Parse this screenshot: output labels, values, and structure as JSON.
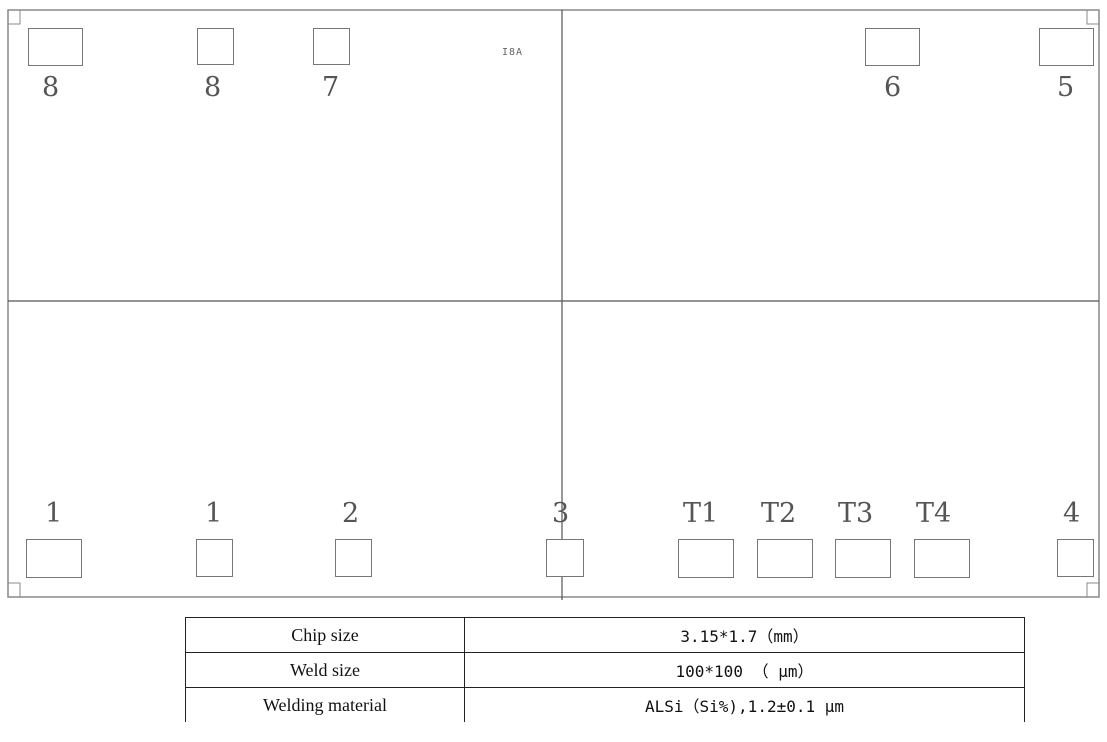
{
  "die": {
    "mark": "I8A",
    "top_pads": [
      {
        "id": "pad-8a",
        "label": "8"
      },
      {
        "id": "pad-8b",
        "label": "8"
      },
      {
        "id": "pad-7",
        "label": "7"
      },
      {
        "id": "pad-6",
        "label": "6"
      },
      {
        "id": "pad-5",
        "label": "5"
      }
    ],
    "bottom_pads": [
      {
        "id": "pad-1a",
        "label": "1"
      },
      {
        "id": "pad-1b",
        "label": "1"
      },
      {
        "id": "pad-2",
        "label": "2"
      },
      {
        "id": "pad-3",
        "label": "3"
      },
      {
        "id": "pad-t1",
        "label": "T1"
      },
      {
        "id": "pad-t2",
        "label": "T2"
      },
      {
        "id": "pad-t3",
        "label": "T3"
      },
      {
        "id": "pad-t4",
        "label": "T4"
      },
      {
        "id": "pad-4",
        "label": "4"
      }
    ]
  },
  "specs": [
    {
      "label": "Chip size",
      "value": "3.15*1.7（mm）"
    },
    {
      "label": "Weld size",
      "value": "100*100 （ μm）"
    },
    {
      "label": "Welding material",
      "value": "ALSi（Si%),1.2±0.1 μm"
    }
  ]
}
